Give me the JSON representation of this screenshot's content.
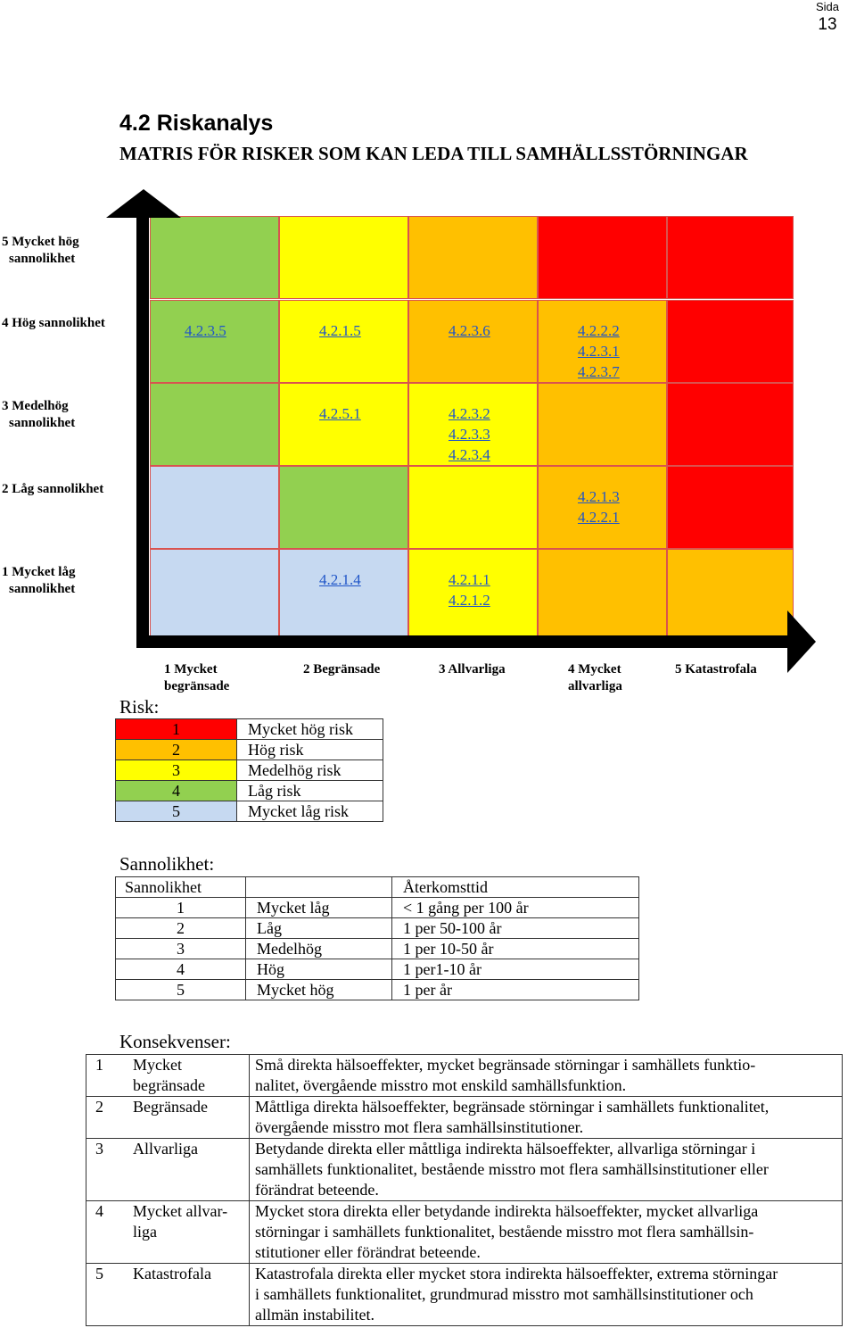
{
  "page": {
    "label": "Sida",
    "number": "13"
  },
  "heading": {
    "title": "4.2 Riskanalys",
    "subtitle": "MATRIS FÖR RISKER SOM KAN LEDA TILL SAMHÄLLSSTÖRNINGAR"
  },
  "colors": {
    "red": "#ff0000",
    "orange": "#ffc000",
    "yellow": "#ffff00",
    "green": "#92d050",
    "lightblue": "#c6d9f1"
  },
  "matrix": {
    "y_labels": [
      [
        "5 Mycket  hög",
        "sannolikhet"
      ],
      [
        "4 Hög sannolikhet"
      ],
      [
        "3 Medelhög",
        "sannolikhet"
      ],
      [
        "2 Låg sannolikhet"
      ],
      [
        "1 Mycket låg",
        "sannolikhet"
      ]
    ],
    "x_labels": [
      [
        "1 Mycket",
        "begränsade"
      ],
      [
        "2 Begränsade"
      ],
      [
        "3 Allvarliga"
      ],
      [
        "4 Mycket",
        "allvarliga"
      ],
      [
        "5 Katastrofala"
      ]
    ],
    "cell_colors": [
      [
        "green",
        "yellow",
        "orange",
        "red",
        "red"
      ],
      [
        "green",
        "yellow",
        "orange",
        "orange",
        "red"
      ],
      [
        "green",
        "yellow",
        "yellow",
        "orange",
        "red"
      ],
      [
        "lightblue",
        "green",
        "yellow",
        "orange",
        "red"
      ],
      [
        "lightblue",
        "lightblue",
        "yellow",
        "orange",
        "orange"
      ]
    ],
    "refs": {
      "4-1": [
        "4.2.1.4"
      ],
      "4-2": [
        "4.2.1.1",
        "4.2.1.2"
      ],
      "3-3": [
        "4.2.1.3",
        "4.2.2.1"
      ],
      "2-1": [
        "4.2.5.1"
      ],
      "2-2": [
        "4.2.3.2",
        "4.2.3.3",
        "4.2.3.4"
      ],
      "1-0": [
        "4.2.3.5"
      ],
      "1-1": [
        "4.2.1.5"
      ],
      "1-2": [
        "4.2.3.6"
      ],
      "1-3": [
        "4.2.2.2",
        "4.2.3.1",
        "4.2.3.7"
      ]
    }
  },
  "risk": {
    "title": "Risk:",
    "rows": [
      {
        "n": "1",
        "label": "Mycket hög risk",
        "color": "red"
      },
      {
        "n": "2",
        "label": "Hög risk",
        "color": "orange"
      },
      {
        "n": "3",
        "label": "Medelhög risk",
        "color": "yellow"
      },
      {
        "n": "4",
        "label": "Låg risk",
        "color": "green"
      },
      {
        "n": "5",
        "label": "Mycket låg risk",
        "color": "lightblue"
      }
    ]
  },
  "sannolikhet": {
    "title": "Sannolikhet:",
    "header": [
      "Sannolikhet",
      "",
      "Återkomsttid"
    ],
    "rows": [
      [
        "1",
        "Mycket låg",
        "< 1 gång per 100 år"
      ],
      [
        "2",
        "Låg",
        "1 per 50-100 år"
      ],
      [
        "3",
        "Medelhög",
        "1 per 10-50 år"
      ],
      [
        "4",
        "Hög",
        "1 per1-10 år"
      ],
      [
        "5",
        "Mycket hög",
        "1 per år"
      ]
    ]
  },
  "konsekvenser": {
    "title": "Konsekvenser:",
    "rows": [
      {
        "n": "1",
        "label": [
          "Mycket",
          "begränsade"
        ],
        "desc": [
          "Små direkta hälsoeffekter, mycket begränsade störningar i samhällets funktio-",
          "nalitet, övergående misstro mot enskild samhällsfunktion."
        ]
      },
      {
        "n": "2",
        "label": [
          "Begränsade"
        ],
        "desc": [
          "Måttliga direkta hälsoeffekter, begränsade störningar i samhällets funktionalitet,",
          "övergående misstro mot flera samhällsinstitutioner."
        ]
      },
      {
        "n": "3",
        "label": [
          "Allvarliga"
        ],
        "desc": [
          "Betydande direkta eller måttliga indirekta hälsoeffekter, allvarliga störningar i",
          "samhällets funktionalitet, bestående misstro mot flera samhällsinstitutioner eller",
          "förändrat beteende."
        ]
      },
      {
        "n": "4",
        "label": [
          "Mycket allvar-",
          "liga"
        ],
        "desc": [
          "Mycket stora direkta eller betydande indirekta hälsoeffekter, mycket allvarliga",
          "störningar i samhällets funktionalitet, bestående misstro mot flera samhällsin-",
          "stitutioner eller förändrat beteende."
        ]
      },
      {
        "n": "5",
        "label": [
          "Katastrofala"
        ],
        "desc": [
          "Katastrofala direkta eller mycket stora indirekta hälsoeffekter, extrema störningar",
          "i samhällets funktionalitet, grundmurad misstro mot samhällsinstitutioner och",
          "allmän instabilitet."
        ]
      }
    ]
  }
}
